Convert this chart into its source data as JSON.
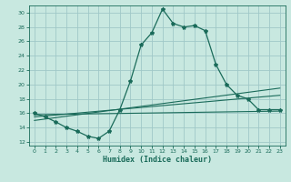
{
  "xlabel": "Humidex (Indice chaleur)",
  "bg_color": "#c8e8e0",
  "grid_color": "#a0c8c8",
  "line_color": "#1a6b5a",
  "xlim": [
    -0.5,
    23.5
  ],
  "ylim": [
    11.5,
    31.0
  ],
  "xticks": [
    0,
    1,
    2,
    3,
    4,
    5,
    6,
    7,
    8,
    9,
    10,
    11,
    12,
    13,
    14,
    15,
    16,
    17,
    18,
    19,
    20,
    21,
    22,
    23
  ],
  "yticks": [
    12,
    14,
    16,
    18,
    20,
    22,
    24,
    26,
    28,
    30
  ],
  "line1_x": [
    0,
    1,
    2,
    3,
    4,
    5,
    6,
    7,
    8,
    9,
    10,
    11,
    12,
    13,
    14,
    15,
    16,
    17,
    18,
    19,
    20,
    21,
    22,
    23
  ],
  "line1_y": [
    16.0,
    15.5,
    14.8,
    14.0,
    13.5,
    12.8,
    12.5,
    13.5,
    16.5,
    20.5,
    25.5,
    27.2,
    30.5,
    28.5,
    28.0,
    28.2,
    27.5,
    22.8,
    20.0,
    18.5,
    18.0,
    16.5,
    16.5,
    16.5
  ],
  "line2_x": [
    0,
    23
  ],
  "line2_y": [
    15.8,
    16.3
  ],
  "line3_x": [
    0,
    23
  ],
  "line3_y": [
    15.0,
    19.5
  ],
  "line4_x": [
    0,
    23
  ],
  "line4_y": [
    15.5,
    18.5
  ]
}
